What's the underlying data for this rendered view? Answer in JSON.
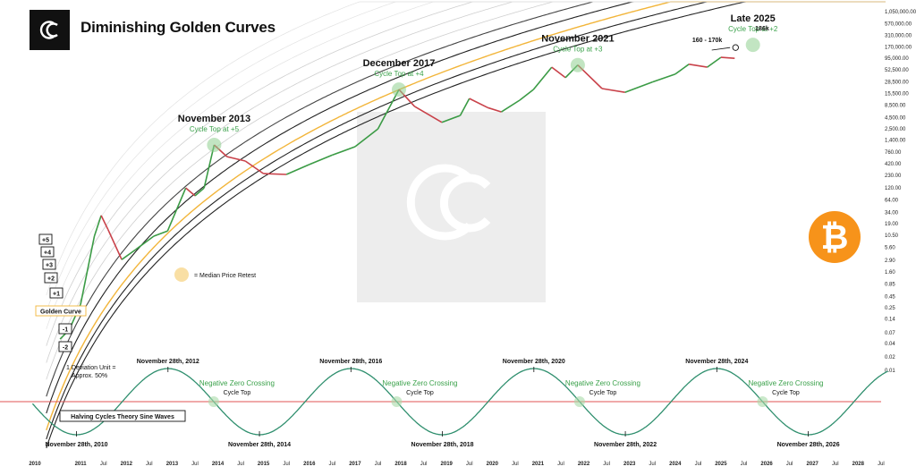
{
  "header": {
    "title": "Diminishing Golden Curves",
    "logo_icon": "cc-logo-icon"
  },
  "bitcoin_icon": {
    "name": "bitcoin-icon",
    "glyph": "₿",
    "color": "#f7931a"
  },
  "watermark_icon": "cc-watermark-icon",
  "chart_data": {
    "type": "line",
    "title": "Diminishing Golden Curves",
    "y_scale": "log",
    "y_ticks": [
      "1,050,000.00",
      "570,000.00",
      "310,000.00",
      "170,000.00",
      "95,000.00",
      "52,500.00",
      "28,500.00",
      "15,500.00",
      "8,500.00",
      "4,500.00",
      "2,500.00",
      "1,400.00",
      "760.00",
      "420.00",
      "230.00",
      "120.00",
      "64.00",
      "34.00",
      "19.00",
      "10.50",
      "5.60",
      "2.90",
      "1.60",
      "0.85",
      "0.45",
      "0.25",
      "0.14",
      "0.07",
      "0.04",
      "0.02",
      "0.01"
    ],
    "x_ticks": [
      "2010",
      "2011",
      "Jul",
      "2012",
      "Jul",
      "2013",
      "Jul",
      "2014",
      "Jul",
      "2015",
      "Jul",
      "2016",
      "Jul",
      "2017",
      "Jul",
      "2018",
      "Jul",
      "2019",
      "Jul",
      "2020",
      "Jul",
      "2021",
      "Jul",
      "2022",
      "Jul",
      "2023",
      "Jul",
      "2024",
      "Jul",
      "2025",
      "Jul",
      "2026",
      "Jul",
      "2027",
      "Jul",
      "2028",
      "Jul"
    ],
    "band_labels": [
      "+5",
      "+4",
      "+3",
      "+2",
      "+1",
      "Golden Curve",
      "-1",
      "-2"
    ],
    "series": [
      {
        "name": "Golden Curve",
        "color": "#f2b53a"
      }
    ],
    "price_path": {
      "x": [
        2010.55,
        2010.75,
        2011.0,
        2011.3,
        2011.45,
        2011.6,
        2011.9,
        2012.2,
        2012.6,
        2012.9,
        2013.3,
        2013.5,
        2013.7,
        2013.92,
        2014.2,
        2014.6,
        2015.0,
        2015.5,
        2016.0,
        2016.5,
        2017.0,
        2017.5,
        2017.96,
        2018.3,
        2018.9,
        2019.3,
        2019.5,
        2019.9,
        2020.2,
        2020.6,
        2020.9,
        2021.3,
        2021.6,
        2021.87,
        2022.4,
        2022.9,
        2023.5,
        2024.0,
        2024.3,
        2024.7,
        2025.0,
        2025.3
      ],
      "y": [
        0.05,
        0.08,
        0.3,
        10,
        29,
        14,
        3,
        5,
        10,
        13,
        120,
        80,
        120,
        1100,
        600,
        480,
        250,
        240,
        400,
        650,
        1000,
        2500,
        19000,
        8000,
        3500,
        5000,
        12000,
        7500,
        6000,
        11000,
        19000,
        60000,
        35000,
        67000,
        20000,
        16500,
        28000,
        42000,
        70000,
        60000,
        100000,
        95000
      ]
    },
    "annotations": [
      {
        "label": "November 2013",
        "sub": "Cycle Top at +5"
      },
      {
        "label": "December 2017",
        "sub": "Cycle Top at +4"
      },
      {
        "label": "November 2021",
        "sub": "Cycle Top at +3"
      },
      {
        "label": "Late 2025",
        "sub": "Cycle Top at +2"
      }
    ],
    "price_targets": [
      "160 - 170k",
      "186k"
    ],
    "legend": {
      "median_retest": "= Median Price Retest"
    },
    "deviation_note": [
      "1 Deviation Unit =",
      "Approx. 50%"
    ],
    "sine": {
      "label": "Halving Cycles Theory Sine Waves",
      "peaks": [
        "November 28th, 2012",
        "November 28th, 2016",
        "November 28th, 2020",
        "November 28th, 2024"
      ],
      "troughs": [
        "November 28th, 2010",
        "November 28th, 2014",
        "November 28th, 2018",
        "November 28th, 2022",
        "November 28th, 2026"
      ],
      "crossing_label": "Negative Zero Crossing",
      "crossing_sub": "Cycle Top",
      "color": "#2f8f6e",
      "zero_line_color": "#e05555"
    }
  }
}
